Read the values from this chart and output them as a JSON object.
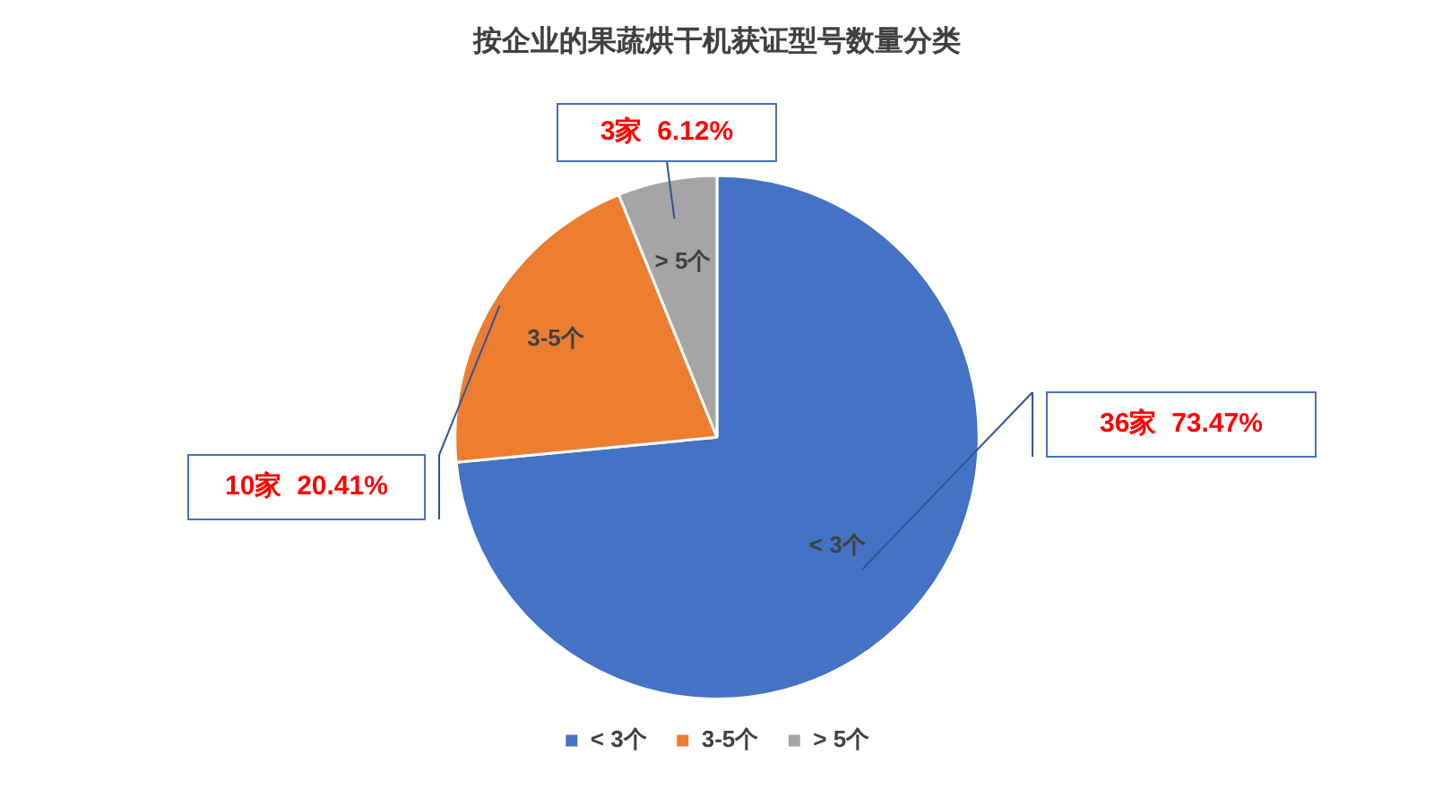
{
  "chart_data": {
    "type": "pie",
    "title": "按企业的果蔬烘干机获证型号数量分类",
    "categories": [
      "< 3个",
      "3-5个",
      "> 5个"
    ],
    "values": [
      36,
      10,
      3
    ],
    "colors": [
      "#4472c4",
      "#ed7d31",
      "#a5a5a5"
    ],
    "value_labels": [
      "36家  73.47%",
      "10家  20.41%",
      "3家  6.12%"
    ],
    "legend": "bottom"
  }
}
